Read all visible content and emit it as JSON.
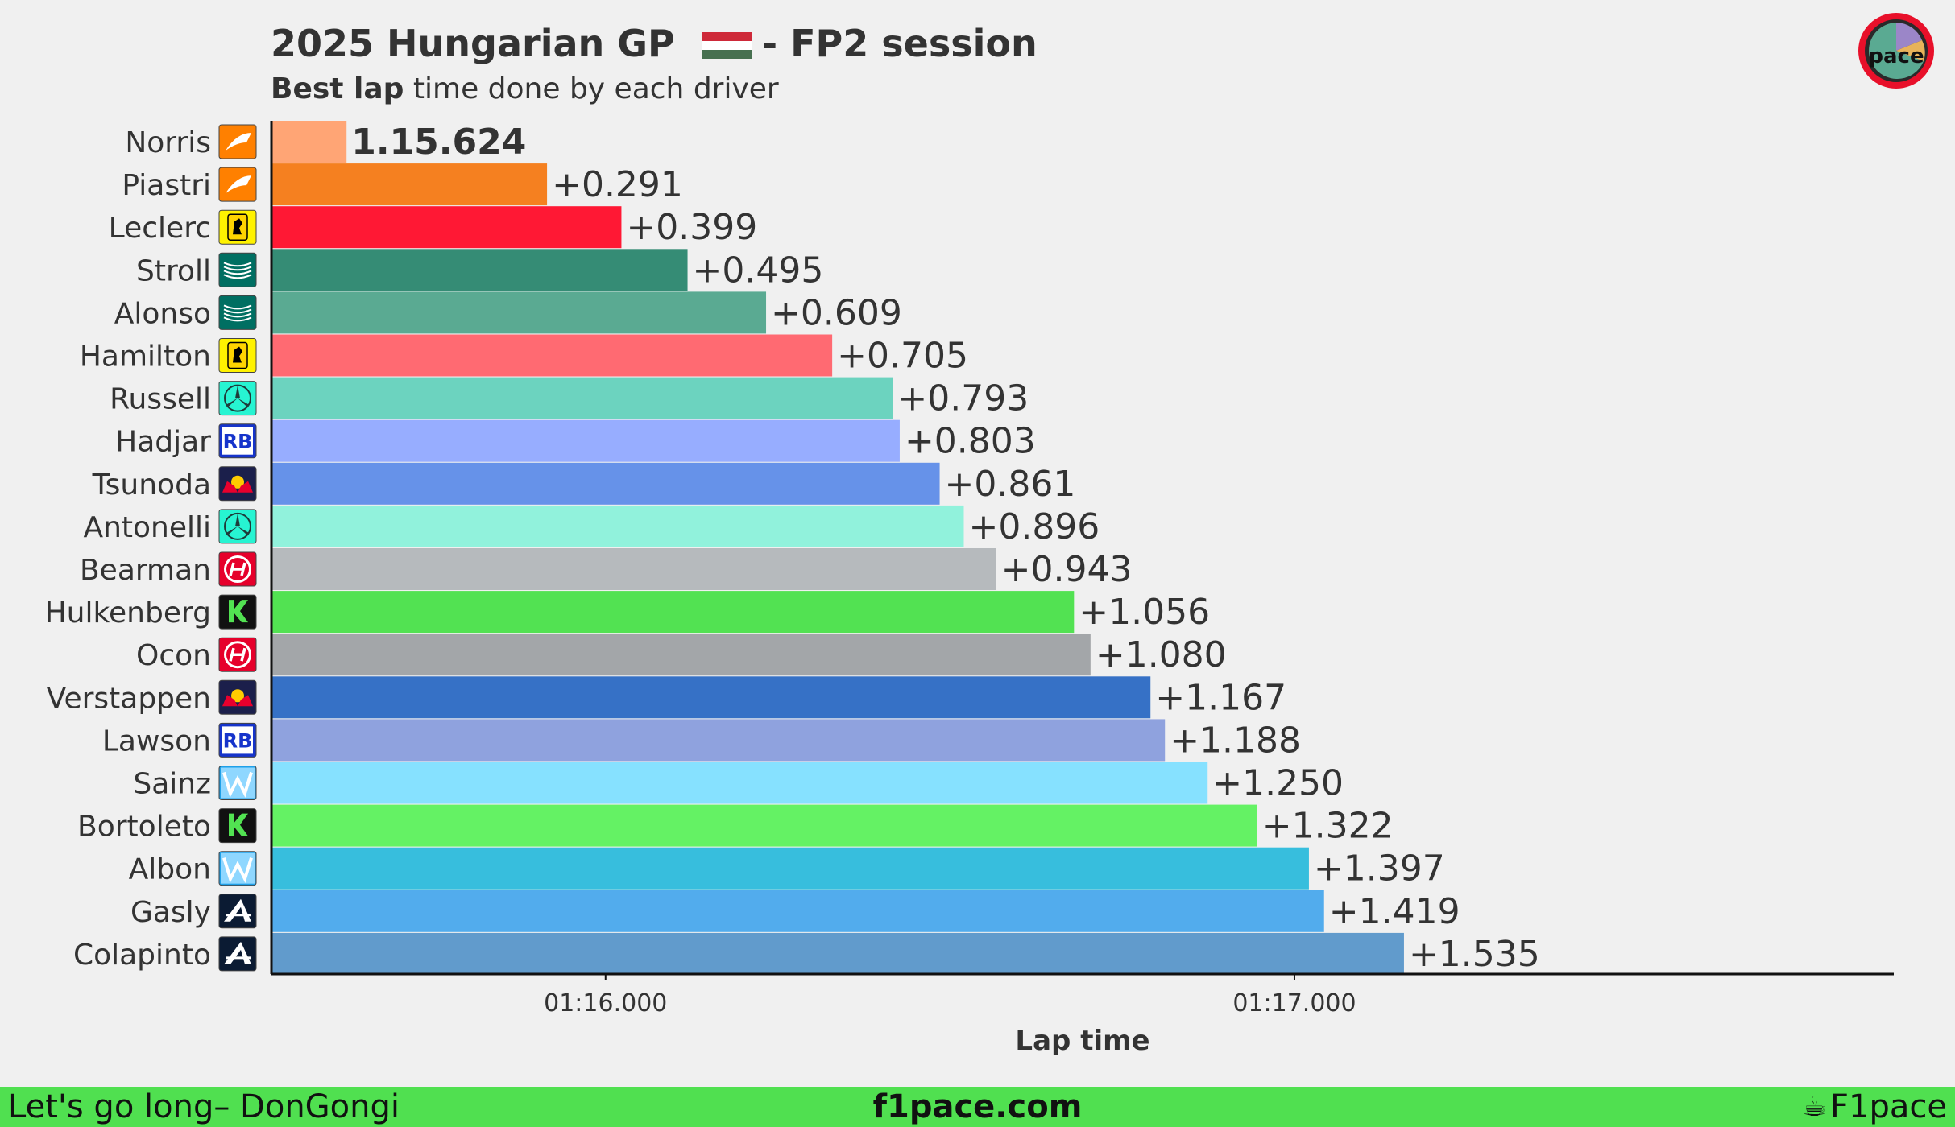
{
  "header": {
    "title_part1": "2025 Hungarian GP",
    "title_part2": "- FP2 session",
    "subtitle_bold": "Best lap",
    "subtitle_rest": "time done by each driver",
    "flag_colors": [
      "#ce2939",
      "#ffffff",
      "#477050"
    ],
    "logo_text": "pace"
  },
  "chart_data": {
    "type": "bar",
    "orientation": "horizontal",
    "xlabel": "Lap time",
    "base_label": "1.15.624",
    "base_time_seconds": 75.624,
    "xlim_seconds": [
      75.515,
      77.87
    ],
    "xticks": [
      {
        "value": 76.0,
        "label": "01:16.000"
      },
      {
        "value": 77.0,
        "label": "01:17.000"
      }
    ],
    "legend": "none",
    "grid": false,
    "categories": [
      "Norris",
      "Piastri",
      "Leclerc",
      "Stroll",
      "Alonso",
      "Hamilton",
      "Russell",
      "Hadjar",
      "Tsunoda",
      "Antonelli",
      "Bearman",
      "Hulkenberg",
      "Ocon",
      "Verstappen",
      "Lawson",
      "Sainz",
      "Bortoleto",
      "Albon",
      "Gasly",
      "Colapinto"
    ],
    "gaps": [
      0,
      0.291,
      0.399,
      0.495,
      0.609,
      0.705,
      0.793,
      0.803,
      0.861,
      0.896,
      0.943,
      1.056,
      1.08,
      1.167,
      1.188,
      1.25,
      1.322,
      1.397,
      1.419,
      1.535
    ],
    "labels": [
      "1.15.624",
      "+0.291",
      "+0.399",
      "+0.495",
      "+0.609",
      "+0.705",
      "+0.793",
      "+0.803",
      "+0.861",
      "+0.896",
      "+0.943",
      "+1.056",
      "+1.080",
      "+1.167",
      "+1.188",
      "+1.250",
      "+1.322",
      "+1.397",
      "+1.419",
      "+1.535"
    ],
    "colors": [
      "#ffa575",
      "#f58020",
      "#ff1834",
      "#358c75",
      "#5aaa92",
      "#ff6a72",
      "#6cd3bf",
      "#97adff",
      "#6692e9",
      "#91f2dc",
      "#b6babd",
      "#52e252",
      "#a3a6a9",
      "#3671c6",
      "#8fa2de",
      "#86e1ff",
      "#64f264",
      "#37bedd",
      "#52aced",
      "#619bcc"
    ],
    "teams": [
      "mclaren",
      "mclaren",
      "ferrari",
      "aston-martin",
      "aston-martin",
      "ferrari",
      "mercedes",
      "racing-bulls",
      "red-bull",
      "mercedes",
      "haas",
      "sauber",
      "haas",
      "red-bull",
      "racing-bulls",
      "williams",
      "sauber",
      "williams",
      "alpine",
      "alpine"
    ]
  },
  "team_icons": {
    "mclaren": {
      "bg": "#ff8000",
      "fg": "#ffffff",
      "name": "mclaren-logo-icon"
    },
    "ferrari": {
      "bg": "#fff200",
      "fg": "#000000",
      "name": "ferrari-logo-icon"
    },
    "aston-martin": {
      "bg": "#006f62",
      "fg": "#ffffff",
      "name": "aston-martin-logo-icon"
    },
    "mercedes": {
      "bg": "#27f4d2",
      "fg": "#1e3b3a",
      "name": "mercedes-logo-icon"
    },
    "racing-bulls": {
      "bg": "#1634cb",
      "fg": "#ffffff",
      "name": "racing-bulls-logo-icon"
    },
    "red-bull": {
      "bg": "#1b1f4b",
      "fg": "#e8002d",
      "name": "red-bull-logo-icon"
    },
    "haas": {
      "bg": "#e6002b",
      "fg": "#ffffff",
      "name": "haas-logo-icon"
    },
    "sauber": {
      "bg": "#111111",
      "fg": "#52e252",
      "name": "sauber-logo-icon"
    },
    "williams": {
      "bg": "#1fa0e8",
      "fg": "#ffffff",
      "name": "williams-logo-icon"
    },
    "alpine": {
      "bg": "#0b1b33",
      "fg": "#ffffff",
      "name": "alpine-logo-icon"
    }
  },
  "footer": {
    "left": "Let's go long– DonGongi",
    "center": "f1pace.com",
    "right": "F1pace",
    "bg_color": "#50e050"
  }
}
